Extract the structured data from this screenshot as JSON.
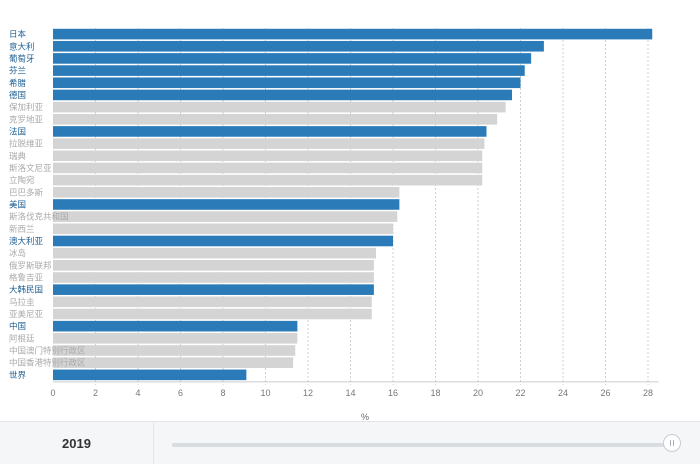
{
  "chart_data": {
    "type": "bar",
    "orientation": "horizontal",
    "xlabel": "%",
    "xlim": [
      0,
      28.5
    ],
    "xticks": [
      0,
      2,
      4,
      6,
      8,
      10,
      12,
      14,
      16,
      18,
      20,
      22,
      24,
      26,
      28
    ],
    "grid": true,
    "highlight_color": "#2b7bb9",
    "default_color": "#d4d4d4",
    "categories": [
      "日本",
      "意大利",
      "葡萄牙",
      "芬兰",
      "希腊",
      "德国",
      "保加利亚",
      "克罗地亚",
      "法国",
      "拉脱维亚",
      "瑞典",
      "斯洛文尼亚",
      "立陶宛",
      "巴巴多斯",
      "美国",
      "斯洛伐克共和国",
      "新西兰",
      "澳大利亚",
      "冰岛",
      "俄罗斯联邦",
      "格鲁吉亚",
      "大韩民国",
      "乌拉圭",
      "亚美尼亚",
      "中国",
      "阿根廷",
      "中国澳门特别行政区",
      "中国香港特别行政区",
      "世界"
    ],
    "values": [
      28.2,
      23.1,
      22.5,
      22.2,
      22.0,
      21.6,
      21.3,
      20.9,
      20.4,
      20.3,
      20.2,
      20.2,
      20.2,
      16.3,
      16.3,
      16.2,
      16.0,
      16.0,
      15.2,
      15.1,
      15.1,
      15.1,
      15.0,
      15.0,
      11.5,
      11.5,
      11.4,
      11.3,
      9.1
    ],
    "highlighted": [
      true,
      true,
      true,
      true,
      true,
      true,
      false,
      false,
      true,
      false,
      false,
      false,
      false,
      false,
      true,
      false,
      false,
      true,
      false,
      false,
      false,
      true,
      false,
      false,
      true,
      false,
      false,
      false,
      true
    ]
  },
  "footer": {
    "year": "2019",
    "slider_position": 1.0
  }
}
